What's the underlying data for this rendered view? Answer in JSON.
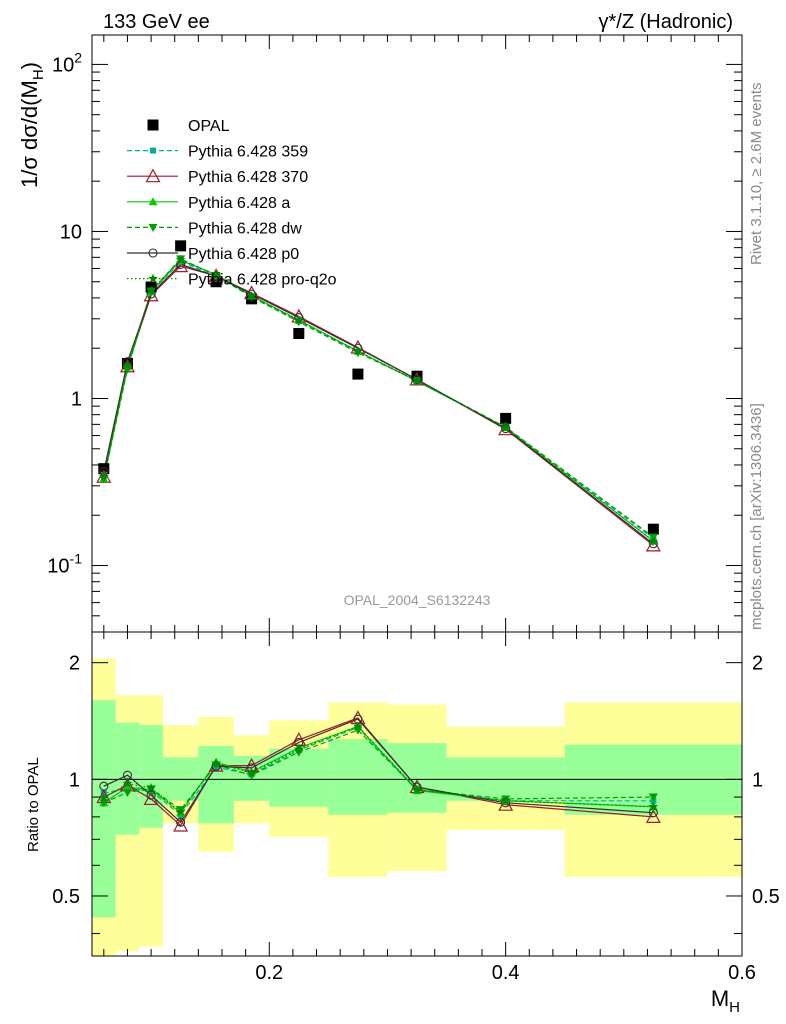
{
  "header": {
    "left": "133 GeV ee",
    "right": "γ*/Z (Hadronic)"
  },
  "side": {
    "rivet": "Rivet 3.1.10, ≥ 2.6M events",
    "mcplots": "mcplots.cern.ch [arXiv:1306.3436]"
  },
  "analysis_label": "OPAL_2004_S6132243",
  "colors": {
    "opal": "#000000",
    "p359": "#00b38f",
    "p370": "#9c1b2f",
    "a": "#00cc00",
    "dw": "#00a000",
    "p0": "#303030",
    "proq2o": "#008800",
    "band_yellow": "#ffff99",
    "band_green": "#99ff99"
  },
  "chart_data": [
    {
      "type": "scatter",
      "panel": "main",
      "ylabel": "1/σ dσ/d(M_H)",
      "yscale": "log",
      "ylim": [
        0.04,
        150
      ],
      "xlim": [
        0.05,
        0.6
      ],
      "ytick_labels": [
        "10^-1",
        "1",
        "10",
        "10^2"
      ],
      "x": [
        0.06,
        0.08,
        0.1,
        0.125,
        0.155,
        0.185,
        0.225,
        0.275,
        0.325,
        0.4,
        0.525
      ],
      "series": [
        {
          "name": "OPAL",
          "color": "#000000",
          "marker": "square",
          "line": "none",
          "values": [
            0.38,
            1.62,
            4.65,
            8.2,
            5.0,
            3.95,
            2.45,
            1.4,
            1.36,
            0.76,
            0.165
          ]
        },
        {
          "name": "Pythia 6.428 359",
          "color": "#00b38f",
          "marker": "small-square",
          "line": "dashed",
          "values": [
            0.35,
            1.53,
            4.32,
            6.6,
            5.38,
            4.08,
            2.92,
            1.91,
            1.27,
            0.67,
            0.145
          ]
        },
        {
          "name": "Pythia 6.428 370",
          "color": "#9c1b2f",
          "marker": "open-triangle",
          "line": "solid",
          "values": [
            0.34,
            1.56,
            4.15,
            6.2,
            5.42,
            4.28,
            3.1,
            2.02,
            1.3,
            0.655,
            0.132
          ]
        },
        {
          "name": "Pythia 6.428 a",
          "color": "#00cc00",
          "marker": "triangle",
          "line": "solid",
          "values": [
            0.33,
            1.55,
            4.36,
            6.72,
            5.52,
            4.12,
            2.95,
            1.92,
            1.27,
            0.67,
            0.14
          ]
        },
        {
          "name": "Pythia 6.428 dw",
          "color": "#00a000",
          "marker": "triangle-down",
          "line": "dashed",
          "values": [
            0.33,
            1.5,
            4.4,
            6.85,
            5.45,
            4.05,
            2.88,
            1.88,
            1.28,
            0.675,
            0.148
          ]
        },
        {
          "name": "Pythia 6.428 p0",
          "color": "#303030",
          "marker": "open-circle",
          "line": "solid",
          "values": [
            0.365,
            1.66,
            4.22,
            6.35,
            5.4,
            4.22,
            3.05,
            2.0,
            1.3,
            0.66,
            0.135
          ]
        },
        {
          "name": "Pythia 6.428 pro-q2o",
          "color": "#008800",
          "marker": "star",
          "line": "dotted",
          "values": [
            0.34,
            1.58,
            4.42,
            6.78,
            5.5,
            4.1,
            2.93,
            1.92,
            1.28,
            0.67,
            0.14
          ]
        }
      ]
    },
    {
      "type": "scatter",
      "panel": "ratio",
      "ylabel": "Ratio to OPAL",
      "xlabel": "M_H",
      "yscale": "log",
      "ylim": [
        0.35,
        2.4
      ],
      "xlim": [
        0.05,
        0.6
      ],
      "xtick_labels": [
        "0.2",
        "0.4",
        "0.6"
      ],
      "ytick_labels": [
        "0.5",
        "1",
        "2"
      ],
      "bins": [
        {
          "x0": 0.05,
          "x1": 0.07,
          "yellow": [
            0.32,
            2.05
          ],
          "green": [
            0.44,
            1.6
          ]
        },
        {
          "x0": 0.07,
          "x1": 0.09,
          "yellow": [
            0.36,
            1.65
          ],
          "green": [
            0.72,
            1.4
          ]
        },
        {
          "x0": 0.09,
          "x1": 0.11,
          "yellow": [
            0.37,
            1.65
          ],
          "green": [
            0.75,
            1.38
          ]
        },
        {
          "x0": 0.11,
          "x1": 0.14,
          "yellow": [
            0.77,
            1.38
          ],
          "green": [
            0.88,
            1.14
          ]
        },
        {
          "x0": 0.14,
          "x1": 0.17,
          "yellow": [
            0.65,
            1.45
          ],
          "green": [
            0.77,
            1.22
          ]
        },
        {
          "x0": 0.17,
          "x1": 0.2,
          "yellow": [
            0.77,
            1.3
          ],
          "green": [
            0.88,
            1.15
          ]
        },
        {
          "x0": 0.2,
          "x1": 0.25,
          "yellow": [
            0.71,
            1.42
          ],
          "green": [
            0.85,
            1.2
          ]
        },
        {
          "x0": 0.25,
          "x1": 0.3,
          "yellow": [
            0.56,
            1.58
          ],
          "green": [
            0.81,
            1.27
          ]
        },
        {
          "x0": 0.3,
          "x1": 0.35,
          "yellow": [
            0.58,
            1.56
          ],
          "green": [
            0.82,
            1.24
          ]
        },
        {
          "x0": 0.35,
          "x1": 0.45,
          "yellow": [
            0.74,
            1.37
          ],
          "green": [
            0.88,
            1.14
          ]
        },
        {
          "x0": 0.45,
          "x1": 0.6,
          "yellow": [
            0.56,
            1.58
          ],
          "green": [
            0.81,
            1.23
          ]
        }
      ],
      "x": [
        0.06,
        0.08,
        0.1,
        0.125,
        0.155,
        0.185,
        0.225,
        0.275,
        0.325,
        0.4,
        0.525
      ],
      "series": [
        {
          "name": "Pythia 6.428 359",
          "color": "#00b38f",
          "marker": "small-square",
          "line": "dashed",
          "values": [
            0.92,
            0.95,
            0.93,
            0.81,
            1.075,
            1.03,
            1.19,
            1.36,
            0.94,
            0.88,
            0.88
          ]
        },
        {
          "name": "Pythia 6.428 370",
          "color": "#9c1b2f",
          "marker": "open-triangle",
          "line": "solid",
          "values": [
            0.9,
            0.965,
            0.89,
            0.76,
            1.085,
            1.085,
            1.265,
            1.44,
            0.955,
            0.86,
            0.8
          ]
        },
        {
          "name": "Pythia 6.428 a",
          "color": "#00cc00",
          "marker": "triangle",
          "line": "solid",
          "values": [
            0.87,
            0.955,
            0.94,
            0.82,
            1.105,
            1.045,
            1.205,
            1.37,
            0.935,
            0.88,
            0.85
          ]
        },
        {
          "name": "Pythia 6.428 dw",
          "color": "#00a000",
          "marker": "triangle-down",
          "line": "dashed",
          "values": [
            0.87,
            0.925,
            0.945,
            0.835,
            1.09,
            1.025,
            1.175,
            1.34,
            0.94,
            0.89,
            0.9
          ]
        },
        {
          "name": "Pythia 6.428 p0",
          "color": "#303030",
          "marker": "open-circle",
          "line": "solid",
          "values": [
            0.96,
            1.025,
            0.91,
            0.775,
            1.08,
            1.07,
            1.245,
            1.43,
            0.955,
            0.87,
            0.82
          ]
        },
        {
          "name": "Pythia 6.428 pro-q2o",
          "color": "#008800",
          "marker": "star",
          "line": "dotted",
          "values": [
            0.895,
            0.975,
            0.95,
            0.825,
            1.1,
            1.04,
            1.195,
            1.37,
            0.94,
            0.88,
            0.85
          ]
        }
      ]
    }
  ]
}
